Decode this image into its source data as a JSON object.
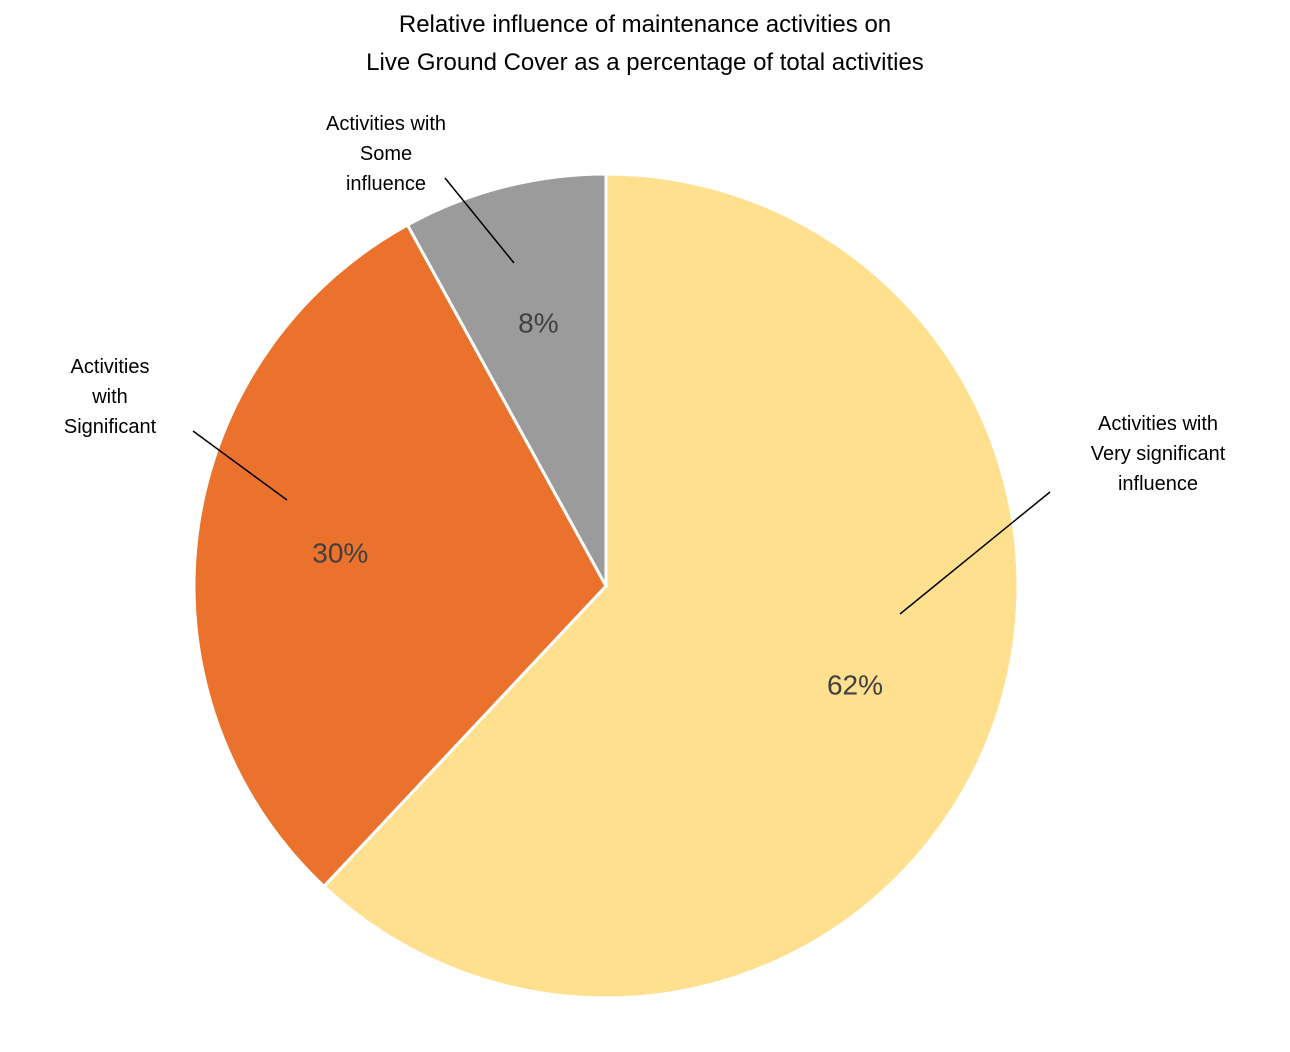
{
  "chart_data": {
    "type": "pie",
    "title_lines": [
      "Relative influence of maintenance activities on",
      "Live Ground Cover as a percentage of total activities"
    ],
    "slices": [
      {
        "label_lines": [
          "Activities with",
          "Very significant",
          "influence"
        ],
        "value": 62,
        "value_label": "62%",
        "color": "#FFE08F"
      },
      {
        "label_lines": [
          "Activities",
          "with",
          "Significant"
        ],
        "value": 30,
        "value_label": "30%",
        "color": "#EA722C"
      },
      {
        "label_lines": [
          "Activities with",
          "Some",
          "influence"
        ],
        "value": 8,
        "value_label": "8%",
        "color": "#9B9B9B"
      }
    ]
  }
}
